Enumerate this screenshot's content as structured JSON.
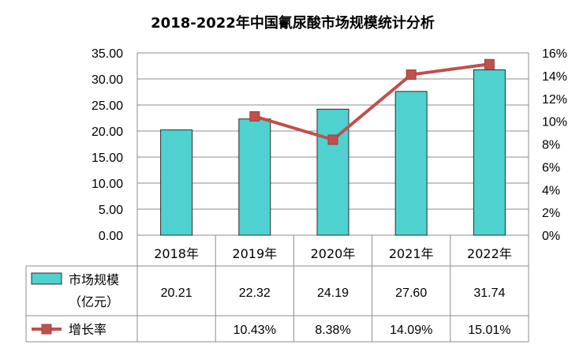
{
  "chart_data": {
    "type": "bar",
    "title": "2018-2022年中国氰尿酸市场规模统计分析",
    "categories": [
      "2018年",
      "2019年",
      "2020年",
      "2021年",
      "2022年"
    ],
    "series": [
      {
        "name": "市场规模（亿元）",
        "legend_line1": "市场规模",
        "legend_line2": "（亿元）",
        "type": "bar",
        "axis": "left",
        "color": "#4FD1D0",
        "values": [
          20.21,
          22.32,
          24.19,
          27.6,
          31.74
        ],
        "display": [
          "20.21",
          "22.32",
          "24.19",
          "27.60",
          "31.74"
        ]
      },
      {
        "name": "增长率",
        "type": "line",
        "axis": "right",
        "color": "#C0504D",
        "values": [
          null,
          10.43,
          8.38,
          14.09,
          15.01
        ],
        "display": [
          "",
          "10.43%",
          "8.38%",
          "14.09%",
          "15.01%"
        ]
      }
    ],
    "y_left": {
      "range": [
        0,
        35
      ],
      "ticks": [
        "0.00",
        "5.00",
        "10.00",
        "15.00",
        "20.00",
        "25.00",
        "30.00",
        "35.00"
      ]
    },
    "y_right": {
      "range": [
        0,
        16
      ],
      "ticks": [
        "0%",
        "2%",
        "4%",
        "6%",
        "8%",
        "10%",
        "12%",
        "14%",
        "16%"
      ]
    },
    "grid": true,
    "legend": "data-table"
  }
}
